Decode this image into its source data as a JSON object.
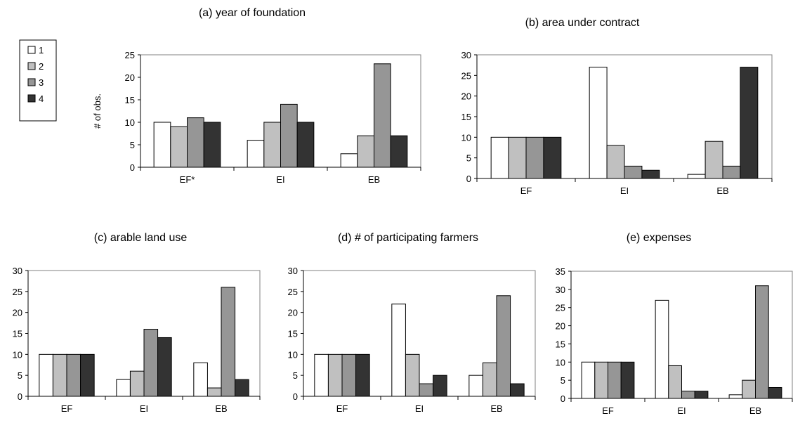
{
  "colors": [
    "#ffffff",
    "#c0c0c0",
    "#969696",
    "#333333"
  ],
  "legend": [
    "1",
    "2",
    "3",
    "4"
  ],
  "chart_data": [
    {
      "type": "bar",
      "title": "(a) year of foundation",
      "ylabel": "# of obs.",
      "categories": [
        "EF*",
        "EI",
        "EB"
      ],
      "ylim": [
        0,
        25
      ],
      "yticks": [
        "0",
        "5",
        "10",
        "15",
        "20",
        "25"
      ],
      "legend_position": "left",
      "series": [
        {
          "name": "1",
          "values": [
            10,
            6,
            3
          ]
        },
        {
          "name": "2",
          "values": [
            9,
            10,
            7
          ]
        },
        {
          "name": "3",
          "values": [
            11,
            14,
            23
          ]
        },
        {
          "name": "4",
          "values": [
            10,
            10,
            7
          ]
        }
      ]
    },
    {
      "type": "bar",
      "title": "(b) area under contract",
      "ylabel": "",
      "categories": [
        "EF",
        "EI",
        "EB"
      ],
      "ylim": [
        0,
        30
      ],
      "yticks": [
        "0",
        "5",
        "10",
        "15",
        "20",
        "25",
        "30"
      ],
      "series": [
        {
          "name": "1",
          "values": [
            10,
            27,
            1
          ]
        },
        {
          "name": "2",
          "values": [
            10,
            8,
            9
          ]
        },
        {
          "name": "3",
          "values": [
            10,
            3,
            3
          ]
        },
        {
          "name": "4",
          "values": [
            10,
            2,
            27
          ]
        }
      ]
    },
    {
      "type": "bar",
      "title": "(c) arable land use",
      "ylabel": "",
      "categories": [
        "EF",
        "EI",
        "EB"
      ],
      "ylim": [
        0,
        30
      ],
      "yticks": [
        "0",
        "5",
        "10",
        "15",
        "20",
        "25",
        "30"
      ],
      "series": [
        {
          "name": "1",
          "values": [
            10,
            4,
            8
          ]
        },
        {
          "name": "2",
          "values": [
            10,
            6,
            2
          ]
        },
        {
          "name": "3",
          "values": [
            10,
            16,
            26
          ]
        },
        {
          "name": "4",
          "values": [
            10,
            14,
            4
          ]
        }
      ]
    },
    {
      "type": "bar",
      "title": "(d) # of participating farmers",
      "ylabel": "",
      "categories": [
        "EF",
        "EI",
        "EB"
      ],
      "ylim": [
        0,
        30
      ],
      "yticks": [
        "0",
        "5",
        "10",
        "15",
        "20",
        "25",
        "30"
      ],
      "series": [
        {
          "name": "1",
          "values": [
            10,
            22,
            5
          ]
        },
        {
          "name": "2",
          "values": [
            10,
            10,
            8
          ]
        },
        {
          "name": "3",
          "values": [
            10,
            3,
            24
          ]
        },
        {
          "name": "4",
          "values": [
            10,
            5,
            3
          ]
        }
      ]
    },
    {
      "type": "bar",
      "title": "(e) expenses",
      "ylabel": "",
      "categories": [
        "EF",
        "EI",
        "EB"
      ],
      "ylim": [
        0,
        35
      ],
      "yticks": [
        "0",
        "5",
        "10",
        "15",
        "20",
        "25",
        "30",
        "35"
      ],
      "series": [
        {
          "name": "1",
          "values": [
            10,
            27,
            1
          ]
        },
        {
          "name": "2",
          "values": [
            10,
            9,
            5
          ]
        },
        {
          "name": "3",
          "values": [
            10,
            2,
            31
          ]
        },
        {
          "name": "4",
          "values": [
            10,
            2,
            3
          ]
        }
      ]
    }
  ]
}
